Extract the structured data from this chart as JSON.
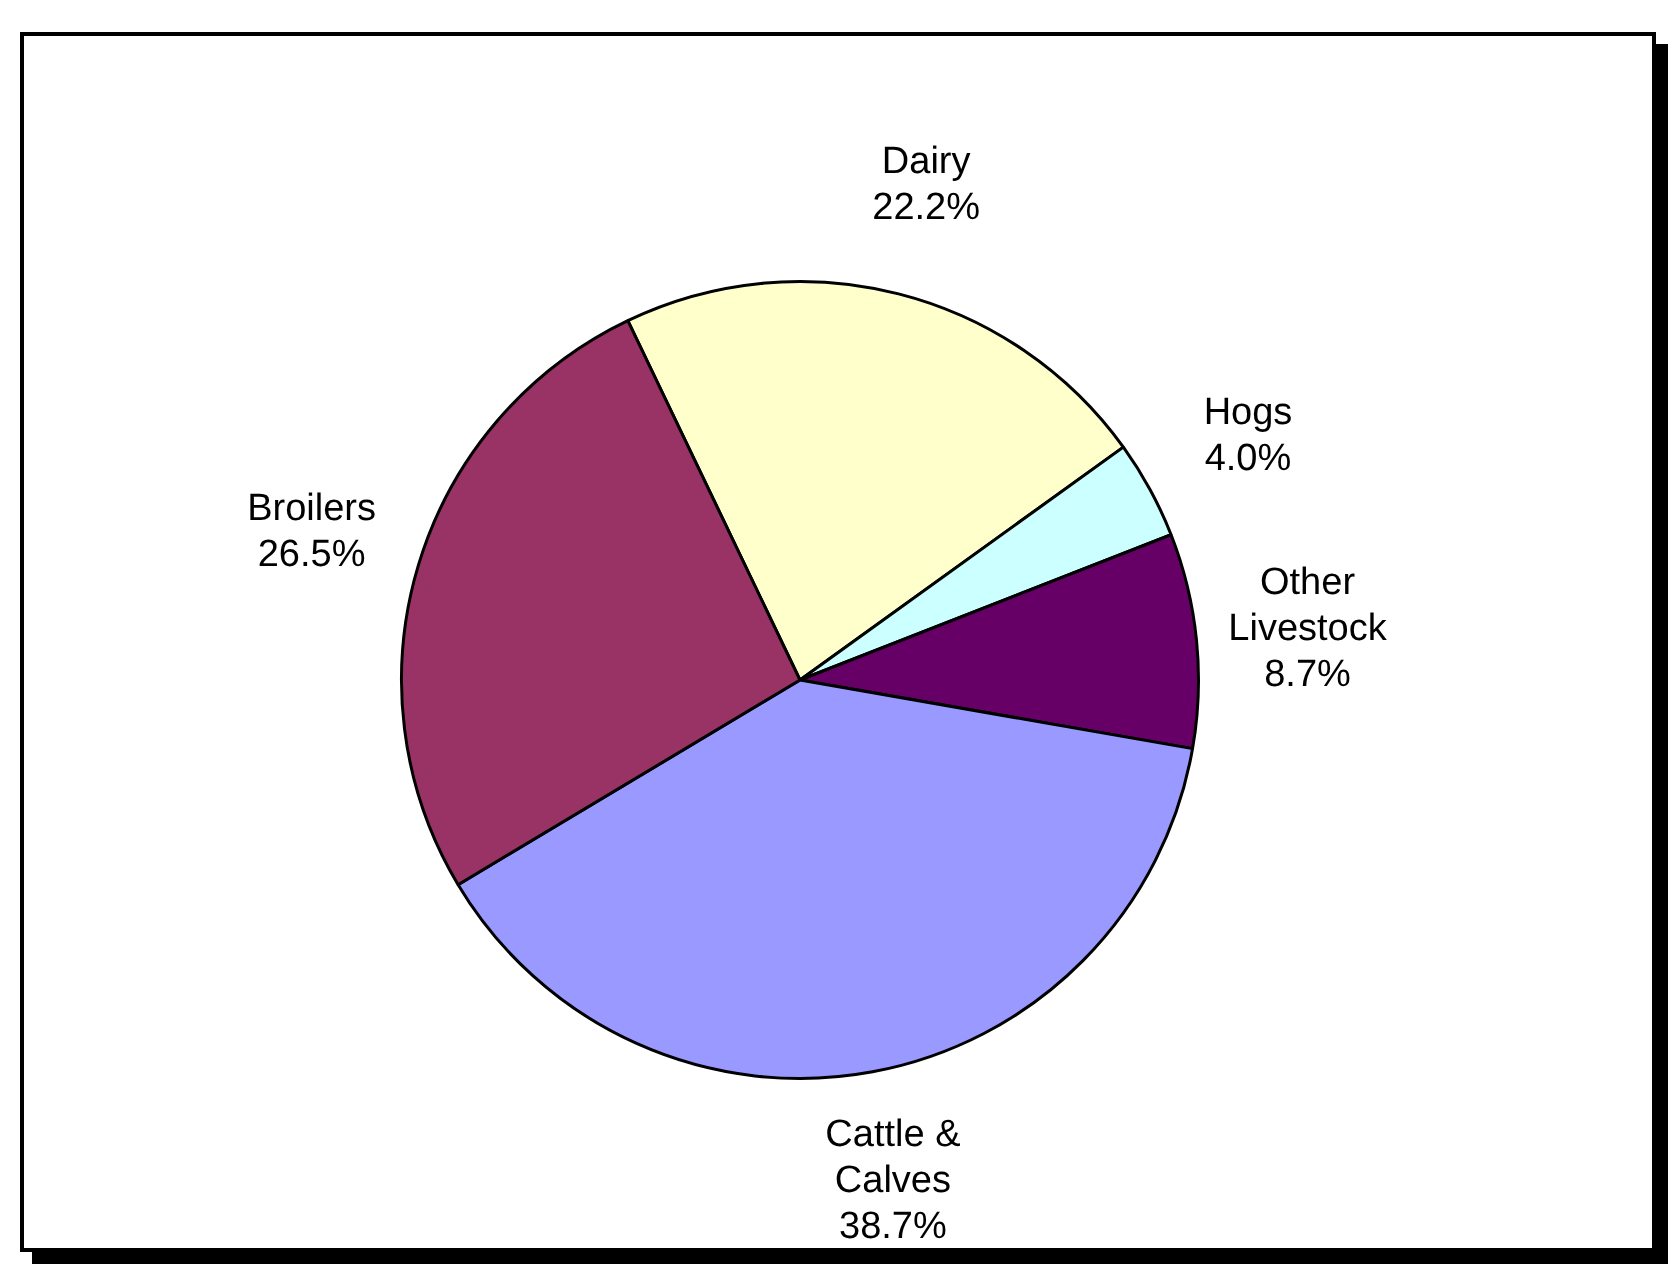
{
  "chart_data": {
    "type": "pie",
    "categories": [
      "Dairy",
      "Hogs",
      "Other Livestock",
      "Cattle & Calves",
      "Broilers"
    ],
    "values": [
      22.2,
      4.0,
      8.7,
      38.7,
      26.5
    ],
    "colors": [
      "#ffffcc",
      "#ccffff",
      "#660066",
      "#9999ff",
      "#993366"
    ],
    "value_labels": [
      "22.2%",
      "4.0%",
      "8.7%",
      "38.7%",
      "26.5%"
    ],
    "legend": false
  }
}
